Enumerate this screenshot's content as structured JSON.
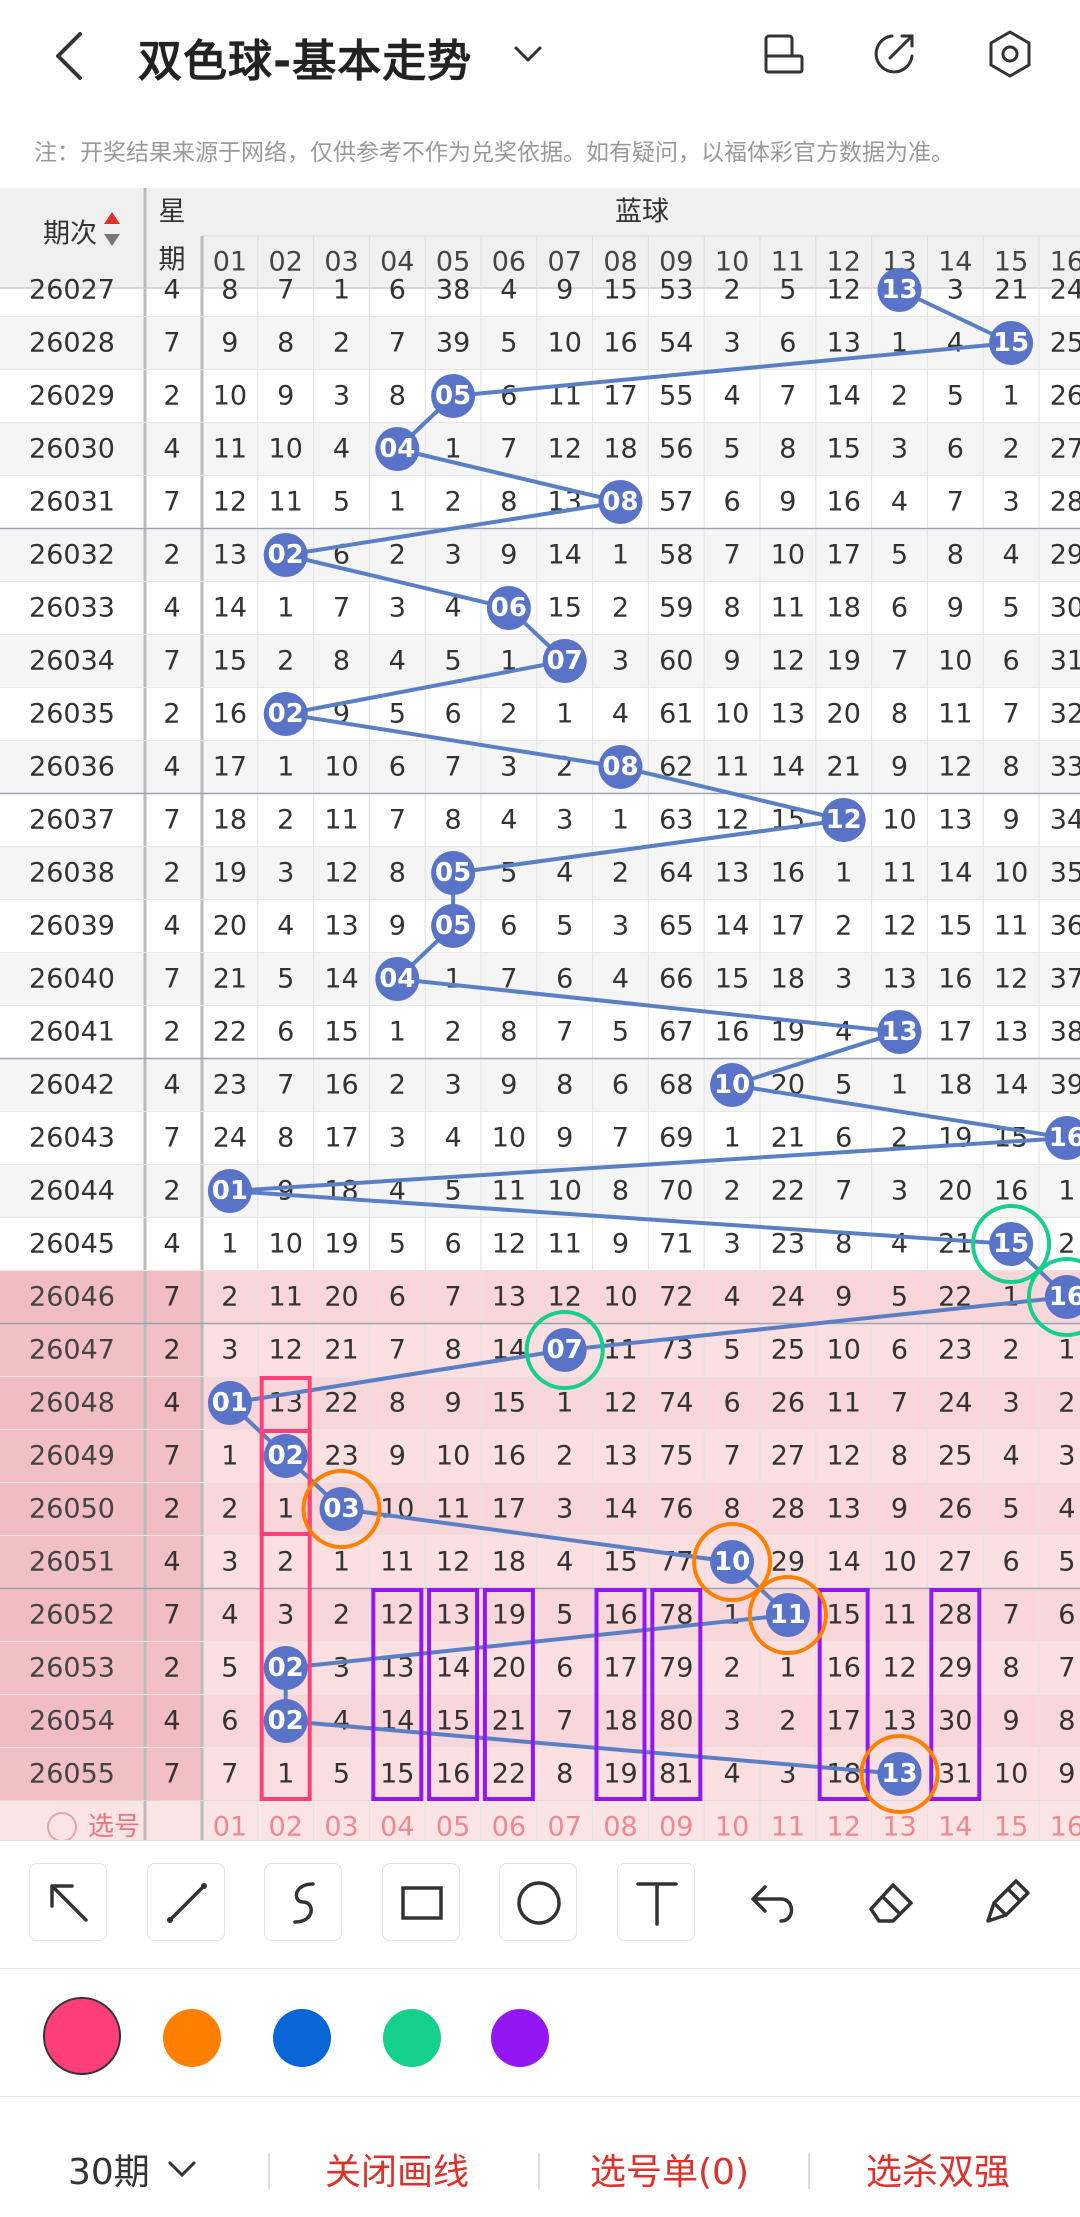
{
  "header": {
    "title": "双色球-基本走势",
    "back_icon": "chevron-left-icon",
    "dropdown_icon": "chevron-down-icon",
    "icons": [
      "screen-layout-icon",
      "edit-share-icon",
      "settings-icon"
    ]
  },
  "notice": "注：开奖结果来源于网络，仅供参考不作为兑奖依据。如有疑问，以福体彩官方数据为准。",
  "table": {
    "col_period_label": "期次",
    "col_week_label": "星期",
    "section_label": "蓝球",
    "numbers": [
      "01",
      "02",
      "03",
      "04",
      "05",
      "06",
      "07",
      "08",
      "09",
      "10",
      "11",
      "12",
      "13",
      "14",
      "15",
      "16"
    ],
    "rows": [
      {
        "period": "26027",
        "week": "4",
        "winner": 13,
        "cells": [
          8,
          7,
          1,
          6,
          38,
          4,
          9,
          15,
          53,
          2,
          5,
          12,
          null,
          3,
          21,
          24
        ]
      },
      {
        "period": "26028",
        "week": "7",
        "winner": 15,
        "cells": [
          9,
          8,
          2,
          7,
          39,
          5,
          10,
          16,
          54,
          3,
          6,
          13,
          1,
          4,
          null,
          25
        ]
      },
      {
        "period": "26029",
        "week": "2",
        "winner": 5,
        "cells": [
          10,
          9,
          3,
          8,
          null,
          6,
          11,
          17,
          55,
          4,
          7,
          14,
          2,
          5,
          1,
          26
        ]
      },
      {
        "period": "26030",
        "week": "4",
        "winner": 4,
        "cells": [
          11,
          10,
          4,
          null,
          1,
          7,
          12,
          18,
          56,
          5,
          8,
          15,
          3,
          6,
          2,
          27
        ]
      },
      {
        "period": "26031",
        "week": "7",
        "winner": 8,
        "cells": [
          12,
          11,
          5,
          1,
          2,
          8,
          13,
          null,
          57,
          6,
          9,
          16,
          4,
          7,
          3,
          28
        ]
      },
      {
        "period": "26032",
        "week": "2",
        "winner": 2,
        "cells": [
          13,
          null,
          6,
          2,
          3,
          9,
          14,
          1,
          58,
          7,
          10,
          17,
          5,
          8,
          4,
          29
        ]
      },
      {
        "period": "26033",
        "week": "4",
        "winner": 6,
        "cells": [
          14,
          1,
          7,
          3,
          4,
          null,
          15,
          2,
          59,
          8,
          11,
          18,
          6,
          9,
          5,
          30
        ]
      },
      {
        "period": "26034",
        "week": "7",
        "winner": 7,
        "cells": [
          15,
          2,
          8,
          4,
          5,
          1,
          null,
          3,
          60,
          9,
          12,
          19,
          7,
          10,
          6,
          31
        ]
      },
      {
        "period": "26035",
        "week": "2",
        "winner": 2,
        "cells": [
          16,
          null,
          9,
          5,
          6,
          2,
          1,
          4,
          61,
          10,
          13,
          20,
          8,
          11,
          7,
          32
        ]
      },
      {
        "period": "26036",
        "week": "4",
        "winner": 8,
        "cells": [
          17,
          1,
          10,
          6,
          7,
          3,
          2,
          null,
          62,
          11,
          14,
          21,
          9,
          12,
          8,
          33
        ]
      },
      {
        "period": "26037",
        "week": "7",
        "winner": 12,
        "cells": [
          18,
          2,
          11,
          7,
          8,
          4,
          3,
          1,
          63,
          12,
          15,
          null,
          10,
          13,
          9,
          34
        ]
      },
      {
        "period": "26038",
        "week": "2",
        "winner": 5,
        "cells": [
          19,
          3,
          12,
          8,
          null,
          5,
          4,
          2,
          64,
          13,
          16,
          1,
          11,
          14,
          10,
          35
        ]
      },
      {
        "period": "26039",
        "week": "4",
        "winner": 5,
        "cells": [
          20,
          4,
          13,
          9,
          null,
          6,
          5,
          3,
          65,
          14,
          17,
          2,
          12,
          15,
          11,
          36
        ]
      },
      {
        "period": "26040",
        "week": "7",
        "winner": 4,
        "cells": [
          21,
          5,
          14,
          null,
          1,
          7,
          6,
          4,
          66,
          15,
          18,
          3,
          13,
          16,
          12,
          37
        ]
      },
      {
        "period": "26041",
        "week": "2",
        "winner": 13,
        "cells": [
          22,
          6,
          15,
          1,
          2,
          8,
          7,
          5,
          67,
          16,
          19,
          4,
          null,
          17,
          13,
          38
        ]
      },
      {
        "period": "26042",
        "week": "4",
        "winner": 10,
        "cells": [
          23,
          7,
          16,
          2,
          3,
          9,
          8,
          6,
          68,
          null,
          20,
          5,
          1,
          18,
          14,
          39
        ]
      },
      {
        "period": "26043",
        "week": "7",
        "winner": 16,
        "cells": [
          24,
          8,
          17,
          3,
          4,
          10,
          9,
          7,
          69,
          1,
          21,
          6,
          2,
          19,
          15,
          null
        ]
      },
      {
        "period": "26044",
        "week": "2",
        "winner": 1,
        "cells": [
          null,
          9,
          18,
          4,
          5,
          11,
          10,
          8,
          70,
          2,
          22,
          7,
          3,
          20,
          16,
          1
        ]
      },
      {
        "period": "26045",
        "week": "4",
        "winner": 15,
        "cells": [
          1,
          10,
          19,
          5,
          6,
          12,
          11,
          9,
          71,
          3,
          23,
          8,
          4,
          21,
          null,
          2
        ]
      },
      {
        "period": "26046",
        "week": "7",
        "winner": 16,
        "cells": [
          2,
          11,
          20,
          6,
          7,
          13,
          12,
          10,
          72,
          4,
          24,
          9,
          5,
          22,
          1,
          null
        ]
      },
      {
        "period": "26047",
        "week": "2",
        "winner": 7,
        "cells": [
          3,
          12,
          21,
          7,
          8,
          14,
          null,
          11,
          73,
          5,
          25,
          10,
          6,
          23,
          2,
          1
        ]
      },
      {
        "period": "26048",
        "week": "4",
        "winner": 1,
        "cells": [
          null,
          13,
          22,
          8,
          9,
          15,
          1,
          12,
          74,
          6,
          26,
          11,
          7,
          24,
          3,
          2
        ]
      },
      {
        "period": "26049",
        "week": "7",
        "winner": 2,
        "cells": [
          1,
          null,
          23,
          9,
          10,
          16,
          2,
          13,
          75,
          7,
          27,
          12,
          8,
          25,
          4,
          3
        ]
      },
      {
        "period": "26050",
        "week": "2",
        "winner": 3,
        "cells": [
          2,
          1,
          null,
          10,
          11,
          17,
          3,
          14,
          76,
          8,
          28,
          13,
          9,
          26,
          5,
          4
        ]
      },
      {
        "period": "26051",
        "week": "4",
        "winner": 10,
        "cells": [
          3,
          2,
          1,
          11,
          12,
          18,
          4,
          15,
          77,
          null,
          29,
          14,
          10,
          27,
          6,
          5
        ]
      },
      {
        "period": "26052",
        "week": "7",
        "winner": 11,
        "cells": [
          4,
          3,
          2,
          12,
          13,
          19,
          5,
          16,
          78,
          1,
          null,
          15,
          11,
          28,
          7,
          6
        ]
      },
      {
        "period": "26053",
        "week": "2",
        "winner": 2,
        "cells": [
          5,
          null,
          3,
          13,
          14,
          20,
          6,
          17,
          79,
          2,
          1,
          16,
          12,
          29,
          8,
          7
        ]
      },
      {
        "period": "26054",
        "week": "4",
        "winner": 2,
        "cells": [
          6,
          null,
          4,
          14,
          15,
          21,
          7,
          18,
          80,
          3,
          2,
          17,
          13,
          30,
          9,
          8
        ]
      },
      {
        "period": "26055",
        "week": "7",
        "winner": 13,
        "cells": [
          7,
          1,
          5,
          15,
          16,
          22,
          8,
          19,
          81,
          4,
          3,
          18,
          null,
          31,
          10,
          9
        ]
      }
    ],
    "select_label": "选号"
  },
  "draw_tools": [
    "cursor-arrow-icon",
    "line-icon",
    "freehand-icon",
    "rectangle-icon",
    "circle-icon",
    "text-icon",
    "undo-icon",
    "eraser-icon",
    "clear-brush-icon"
  ],
  "palette": {
    "colors": [
      "#ff3f7a",
      "#ff7f00",
      "#0a66d6",
      "#15cf8d",
      "#9317f2"
    ],
    "selected": "#ff3f7a"
  },
  "bottom": {
    "period_select": "30期",
    "close_lines": "关闭画线",
    "pick_list": "选号单(0)",
    "kill_strong": "选杀双强"
  },
  "annotations": {
    "circles": [
      {
        "color": "#15cf8d",
        "row": 18,
        "col": 15
      },
      {
        "color": "#15cf8d",
        "row": 19,
        "col": 16
      },
      {
        "color": "#15cf8d",
        "row": 20,
        "col": 7
      },
      {
        "color": "#ff7f00",
        "row": 23,
        "col": 3
      },
      {
        "color": "#ff7f00",
        "row": 24,
        "col": 10
      },
      {
        "color": "#ff7f00",
        "row": 25,
        "col": 11
      },
      {
        "color": "#ff7f00",
        "row": 28,
        "col": 13
      }
    ],
    "rects": [
      {
        "color": "#ff3f7a",
        "rows": [
          21,
          23
        ],
        "col": 2
      },
      {
        "color": "#ff3f7a",
        "rows": [
          22,
          28
        ],
        "col": 2
      },
      {
        "color": "#9317f2",
        "rows": [
          25,
          28
        ],
        "col": 4
      },
      {
        "color": "#9317f2",
        "rows": [
          25,
          28
        ],
        "col": 5
      },
      {
        "color": "#9317f2",
        "rows": [
          25,
          28
        ],
        "col": 6
      },
      {
        "color": "#9317f2",
        "rows": [
          25,
          28
        ],
        "col": 8
      },
      {
        "color": "#9317f2",
        "rows": [
          25,
          28
        ],
        "col": 9
      },
      {
        "color": "#9317f2",
        "rows": [
          25,
          28
        ],
        "col": 12
      },
      {
        "color": "#9317f2",
        "rows": [
          25,
          28
        ],
        "col": 14
      }
    ]
  }
}
